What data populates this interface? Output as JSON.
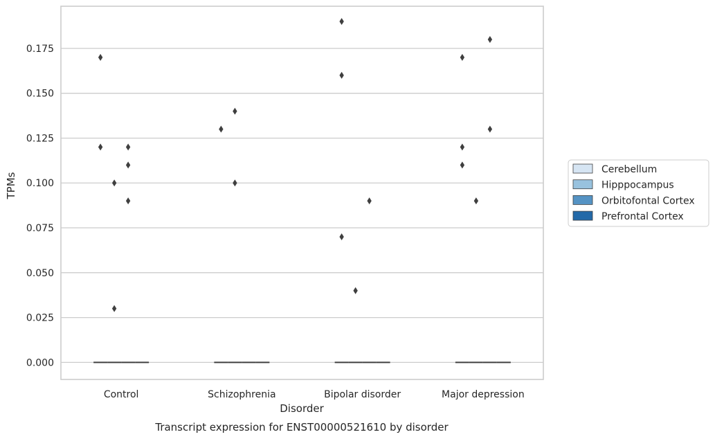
{
  "chart_data": {
    "type": "box",
    "caption": "Transcript expression for ENST00000521610 by disorder",
    "xlabel": "Disorder",
    "ylabel": "TPMs",
    "categories": [
      "Control",
      "Schizophrenia",
      "Bipolar disorder",
      "Major depression"
    ],
    "yticks": [
      "0.000",
      "0.025",
      "0.050",
      "0.075",
      "0.100",
      "0.125",
      "0.150",
      "0.175"
    ],
    "ylim": [
      -0.0095,
      0.1985
    ],
    "grid": true,
    "legend_position": "right",
    "series": [
      {
        "name": "Cerebellum",
        "color": "#d6e5f3",
        "median": [
          0,
          0,
          0,
          0
        ],
        "outliers": [
          [
            0.17,
            0.12
          ],
          [
            0.13
          ],
          [
            0.16,
            0.07,
            0.19
          ],
          [
            0.17,
            0.12,
            0.11
          ]
        ]
      },
      {
        "name": "Hipppocampus",
        "color": "#98c2de",
        "median": [
          0,
          0,
          0,
          0
        ],
        "outliers": [
          [
            0.1,
            0.03
          ],
          [
            0.1,
            0.14
          ],
          [
            0.04
          ],
          [
            0.09
          ]
        ]
      },
      {
        "name": "Orbitofontal Cortex",
        "color": "#5593c4",
        "median": [
          0,
          0,
          0,
          0
        ],
        "outliers": [
          [
            0.12,
            0.11,
            0.09
          ],
          [],
          [
            0.09
          ],
          [
            0.18,
            0.13
          ]
        ]
      },
      {
        "name": "Prefrontal Cortex",
        "color": "#2369a8",
        "median": [
          0,
          0,
          0,
          0
        ],
        "outliers": [
          [],
          [],
          [],
          []
        ]
      }
    ]
  }
}
